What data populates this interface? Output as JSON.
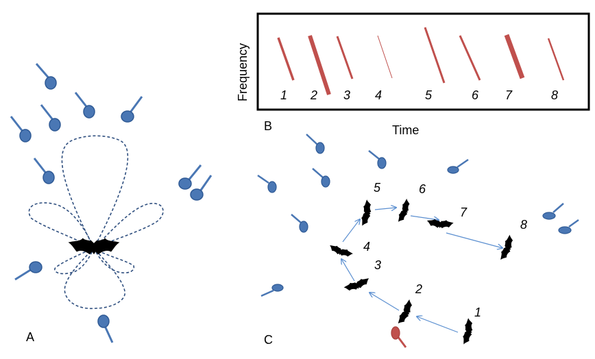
{
  "panels": {
    "a_label": "A",
    "b_label": "B",
    "c_label": "C"
  },
  "panel_b": {
    "y_axis_label": "Frequency",
    "x_axis_label": "Time",
    "call_numbers": [
      "1",
      "2",
      "3",
      "4",
      "5",
      "6",
      "7",
      "8"
    ]
  },
  "panel_c": {
    "position_numbers": [
      "1",
      "2",
      "3",
      "4",
      "5",
      "6",
      "7",
      "8"
    ]
  },
  "colors": {
    "prey_blue": "#4a77b4",
    "prey_stroke": "#2f5a95",
    "call_red": "#c0504d",
    "arrow_blue": "#5b8fd0",
    "beam_dash": "#2f4f7f",
    "bat": "#000000"
  },
  "icons": [
    "bat-icon",
    "insect-prey-icon"
  ]
}
